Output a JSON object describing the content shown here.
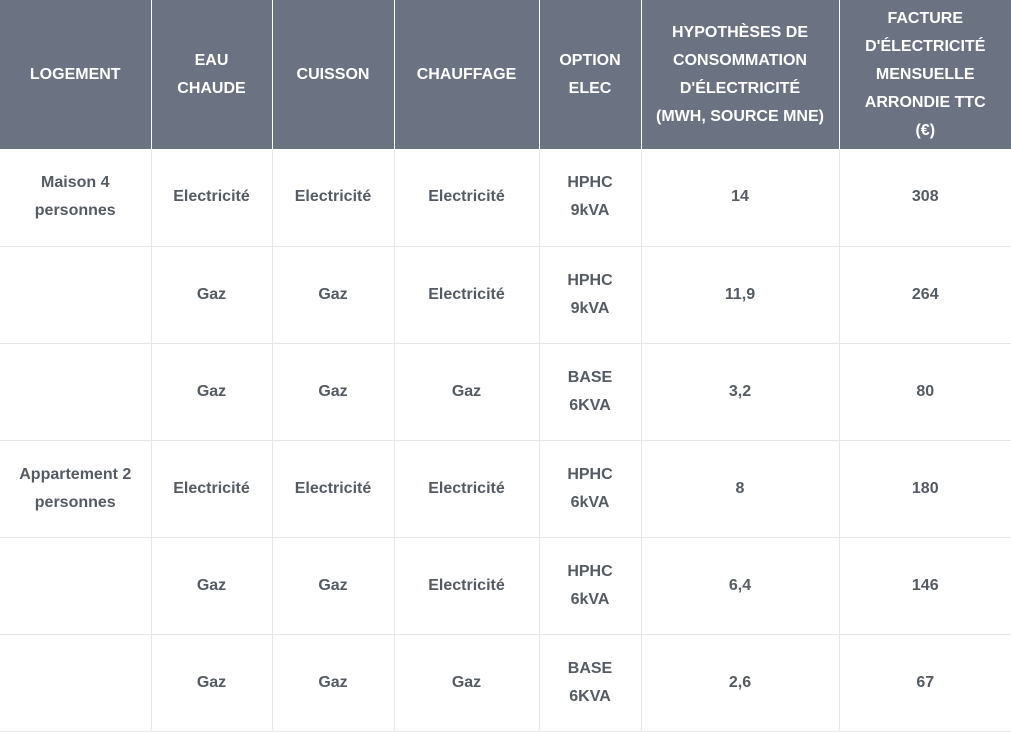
{
  "table": {
    "header": [
      "LOGEMENT",
      "EAU CHAUDE",
      "CUISSON",
      "CHAUFFAGE",
      "OPTION ELEC",
      "HYPOTHÈSES DE CONSOMMATION D'ÉLECTRICITÉ (MWH, SOURCE MNE)",
      "FACTURE D'ÉLECTRICITÉ MENSUELLE ARRONDIE TTC (€)"
    ],
    "rows": [
      [
        "Maison 4 personnes",
        "Electricité",
        "Electricité",
        "Electricité",
        "HPHC 9kVA",
        "14",
        "308"
      ],
      [
        null,
        "Gaz",
        "Gaz",
        "Electricité",
        "HPHC 9kVA",
        "11,9",
        "264"
      ],
      [
        null,
        "Gaz",
        "Gaz",
        "Gaz",
        "BASE 6KVA",
        "3,2",
        "80"
      ],
      [
        "Appartement 2 personnes",
        "Electricité",
        "Electricité",
        "Electricité",
        "HPHC 6kVA",
        "8",
        "180"
      ],
      [
        null,
        "Gaz",
        "Gaz",
        "Electricité",
        "HPHC 6kVA",
        "6,4",
        "146"
      ],
      [
        null,
        "Gaz",
        "Gaz",
        "Gaz",
        "BASE 6KVA",
        "2,6",
        "67"
      ]
    ]
  }
}
